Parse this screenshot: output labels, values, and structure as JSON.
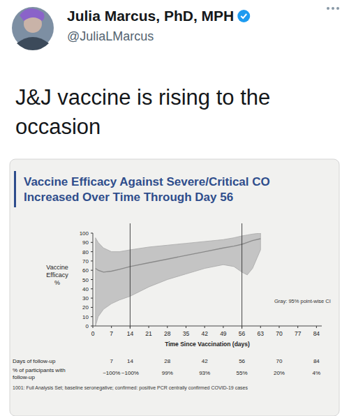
{
  "tweet": {
    "name": "Julia Marcus, PhD, MPH",
    "handle": "@JuliaLMarcus",
    "text": "J&J vaccine is rising to the occasion"
  },
  "chart_data": {
    "type": "line",
    "title": "Vaccine Efficacy Against Severe/Critical CO",
    "subtitle": "Increased Over Time Through Day 56",
    "y_label": "Vaccine Efficacy %",
    "x_label": "Time Since Vaccination (days)",
    "annotation": "Gray: 95% point-wise CI",
    "x": [
      1,
      2,
      4,
      7,
      10,
      14,
      21,
      28,
      35,
      42,
      49,
      53,
      56,
      58,
      60,
      63
    ],
    "series": [
      {
        "type": "line",
        "color": "#8a8a8a",
        "values": [
          62,
          60,
          58,
          59,
          61,
          64,
          68,
          72,
          76,
          80,
          84,
          86,
          88,
          90,
          92,
          94
        ]
      },
      {
        "type": "area",
        "color": "#c4c4c4",
        "values": [
          95,
          90,
          84,
          80,
          80,
          82,
          85,
          87,
          89,
          91,
          93,
          95,
          97,
          98,
          99,
          100
        ],
        "lower": [
          0,
          10,
          18,
          24,
          28,
          32,
          42,
          50,
          56,
          62,
          66,
          64,
          58,
          55,
          62,
          82
        ]
      }
    ],
    "xlim": [
      0,
      86
    ],
    "ylim": [
      0,
      100
    ],
    "xticks": [
      0,
      7,
      14,
      21,
      28,
      35,
      42,
      49,
      56,
      63,
      70,
      77,
      84
    ],
    "yticks": [
      0,
      10,
      20,
      30,
      40,
      50,
      60,
      70,
      80,
      90,
      100
    ],
    "vlines": [
      14,
      56
    ],
    "grid": false
  },
  "follow_up_table": {
    "row_labels": [
      "Days of follow-up",
      "% of participants with follow-up"
    ],
    "days": [
      7,
      14,
      28,
      42,
      56,
      70,
      84
    ],
    "percent_labels": [
      "~100%",
      "~100%",
      "99%",
      "93%",
      "55%",
      "20%",
      "4%"
    ]
  },
  "footnote": "1001: Full Analysis Set; baseline seronegative; confirmed: positive PCR centrally confirmed COVID-19 cases"
}
